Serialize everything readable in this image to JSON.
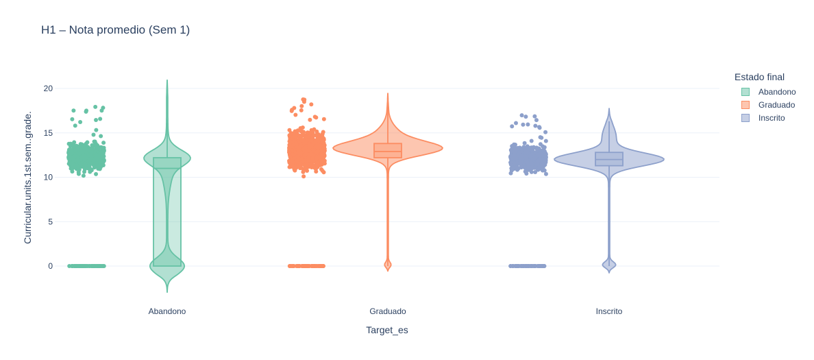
{
  "chart_data": {
    "type": "violin",
    "title": "H1 – Nota promedio (Sem 1)",
    "xlabel": "Target_es",
    "ylabel": "Curricular.units.1st.sem..grade.",
    "categories": [
      "Abandono",
      "Graduado",
      "Inscrito"
    ],
    "y_ticks": [
      0,
      5,
      10,
      15,
      20
    ],
    "ylim": [
      -3.2,
      21.5
    ],
    "grid": true,
    "legend": {
      "title": "Estado final",
      "placement": "right"
    },
    "series": [
      {
        "name": "Abandono",
        "color": "#66c2a5",
        "box": {
          "q1": 0,
          "median": 11,
          "q3": 12.2
        },
        "range": [
          -3,
          21
        ],
        "points": {
          "zero_cluster": 0,
          "band": [
            10,
            14.5
          ],
          "max": 18
        }
      },
      {
        "name": "Graduado",
        "color": "#fc8d62",
        "box": {
          "q1": 12.2,
          "median": 12.9,
          "q3": 13.8
        },
        "range": [
          -0.6,
          19.5
        ],
        "points": {
          "zero_cluster": 0,
          "band": [
            10,
            16
          ],
          "max": 18.8
        }
      },
      {
        "name": "Inscrito",
        "color": "#8da0cb",
        "box": {
          "q1": 11.3,
          "median": 12,
          "q3": 12.8
        },
        "range": [
          -0.8,
          17.8
        ],
        "points": {
          "zero_cluster": 0,
          "band": [
            10,
            14.3
          ],
          "max": 17
        }
      }
    ]
  }
}
